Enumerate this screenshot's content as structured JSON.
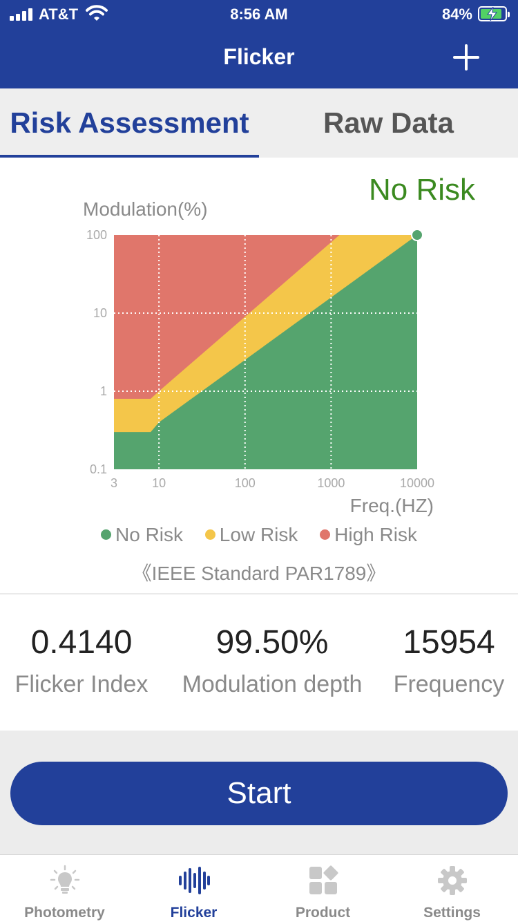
{
  "status_bar": {
    "carrier": "AT&T",
    "time": "8:56 AM",
    "battery_percent": "84%",
    "icons": [
      "signal-icon",
      "wifi-icon",
      "battery-charging-icon"
    ]
  },
  "nav": {
    "title": "Flicker",
    "add_icon": "plus-icon"
  },
  "tabs": [
    {
      "label": "Risk Assessment",
      "active": true
    },
    {
      "label": "Raw Data",
      "active": false
    }
  ],
  "result": {
    "verdict": "No Risk",
    "color": "#3b8a20"
  },
  "chart_data": {
    "type": "area",
    "y_axis_title": "Modulation(%)",
    "x_axis_title": "Freq.(HZ)",
    "x_scale": "log",
    "y_scale": "log",
    "x_ticks": [
      "3",
      "10",
      "100",
      "1000",
      "10000"
    ],
    "x_tick_values": [
      3,
      10,
      100,
      1000,
      10000
    ],
    "y_ticks": [
      "100",
      "10",
      "1",
      "0.1"
    ],
    "y_tick_values": [
      100,
      10,
      1,
      0.1
    ],
    "xlim": [
      3,
      10000
    ],
    "ylim": [
      0.1,
      100
    ],
    "grid": "dotted",
    "regions": [
      {
        "name": "No Risk",
        "color": "#55a46e",
        "upper_boundary": [
          [
            3,
            0.3
          ],
          [
            8,
            0.3
          ],
          [
            10,
            0.4
          ],
          [
            10000,
            100
          ]
        ]
      },
      {
        "name": "Low Risk",
        "color": "#f4c64a",
        "upper_boundary": [
          [
            3,
            0.8
          ],
          [
            8,
            0.8
          ],
          [
            10,
            1.0
          ],
          [
            1250,
            100
          ],
          [
            10000,
            100
          ]
        ]
      },
      {
        "name": "High Risk",
        "color": "#e0766b",
        "upper_boundary": [
          [
            3,
            100
          ],
          [
            10000,
            100
          ]
        ]
      }
    ],
    "measurement": {
      "frequency": 10000,
      "modulation": 100,
      "color": "#55a46e"
    },
    "legend": [
      "No Risk",
      "Low Risk",
      "High Risk"
    ],
    "legend_colors": [
      "#55a46e",
      "#f4c64a",
      "#e0766b"
    ],
    "legend_position": "bottom"
  },
  "standard": "《IEEE Standard PAR1789》",
  "metrics": [
    {
      "value": "0.4140",
      "label": "Flicker Index"
    },
    {
      "value": "99.50%",
      "label": "Modulation depth"
    },
    {
      "value": "15954",
      "label": "Frequency"
    }
  ],
  "start_button": {
    "label": "Start",
    "color": "#22409a"
  },
  "tab_bar": [
    {
      "label": "Photometry",
      "icon": "lightbulb-icon",
      "active": false
    },
    {
      "label": "Flicker",
      "icon": "waveform-icon",
      "active": true
    },
    {
      "label": "Product",
      "icon": "product-grid-icon",
      "active": false
    },
    {
      "label": "Settings",
      "icon": "gear-icon",
      "active": false
    }
  ],
  "colors": {
    "primary": "#22409a",
    "inactive": "#8a8a8a"
  }
}
